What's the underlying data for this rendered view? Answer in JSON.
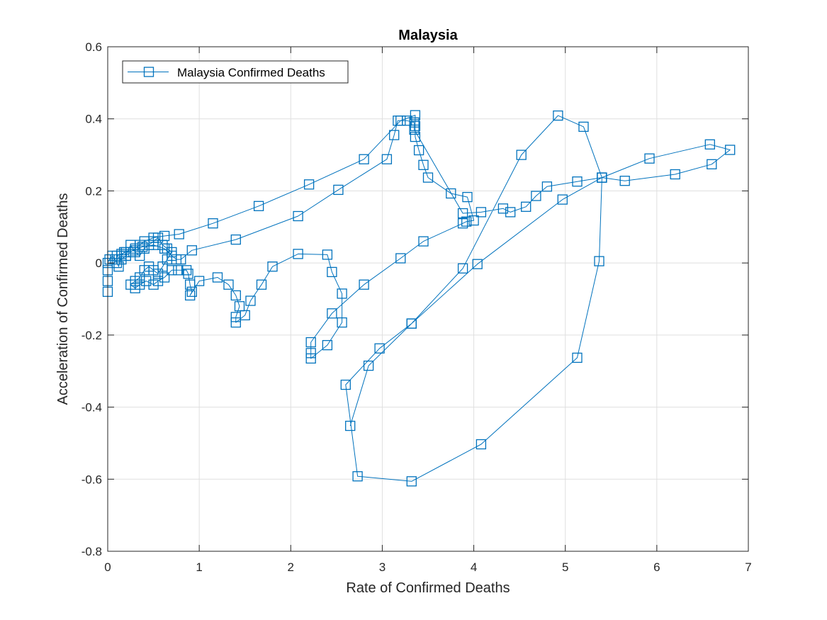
{
  "chart_data": {
    "type": "line",
    "title": "Malaysia",
    "xlabel": "Rate of Confirmed Deaths",
    "ylabel": "Acceleration of Confirmed Deaths",
    "xlim": [
      0,
      7
    ],
    "ylim": [
      -0.8,
      0.6
    ],
    "xticks": [
      "0",
      "1",
      "2",
      "3",
      "4",
      "5",
      "6",
      "7"
    ],
    "yticks": [
      "-0.8",
      "-0.6",
      "-0.4",
      "-0.2",
      "0",
      "0.2",
      "0.4",
      "0.6"
    ],
    "grid": true,
    "legend_position": "top-left",
    "marker": "square",
    "color": "#0072BD",
    "series": [
      {
        "name": "Malaysia Confirmed Deaths",
        "points": [
          [
            0,
            -0.08
          ],
          [
            0,
            -0.05
          ],
          [
            0,
            -0.02
          ],
          [
            0,
            0
          ],
          [
            0.02,
            0.01
          ],
          [
            0.05,
            0.02
          ],
          [
            0.08,
            0.01
          ],
          [
            0.1,
            0
          ],
          [
            0.12,
            -0.01
          ],
          [
            0.15,
            0.02
          ],
          [
            0.18,
            0.03
          ],
          [
            0.2,
            0.02
          ],
          [
            0.25,
            0.05
          ],
          [
            0.3,
            0.03
          ],
          [
            0.35,
            0.02
          ],
          [
            0.4,
            0.04
          ],
          [
            0.45,
            0.05
          ],
          [
            0.5,
            0.06
          ],
          [
            0.55,
            0.07
          ],
          [
            0.6,
            0.05
          ],
          [
            0.65,
            0.04
          ],
          [
            0.7,
            0.03
          ],
          [
            0.65,
            0.01
          ],
          [
            0.6,
            -0.01
          ],
          [
            0.55,
            -0.03
          ],
          [
            0.5,
            -0.02
          ],
          [
            0.45,
            -0.01
          ],
          [
            0.4,
            -0.02
          ],
          [
            0.35,
            -0.04
          ],
          [
            0.3,
            -0.05
          ],
          [
            0.25,
            -0.06
          ],
          [
            0.3,
            -0.07
          ],
          [
            0.35,
            -0.06
          ],
          [
            0.42,
            -0.05
          ],
          [
            0.5,
            -0.06
          ],
          [
            0.55,
            -0.05
          ],
          [
            0.62,
            -0.04
          ],
          [
            0.7,
            -0.02
          ],
          [
            0.77,
            -0.02
          ],
          [
            0.86,
            -0.02
          ],
          [
            0.88,
            -0.03
          ],
          [
            0.9,
            -0.06
          ],
          [
            0.92,
            -0.08
          ],
          [
            0.9,
            -0.09
          ],
          [
            1.0,
            -0.05
          ],
          [
            1.2,
            -0.04
          ],
          [
            1.32,
            -0.06
          ],
          [
            1.4,
            -0.09
          ],
          [
            1.44,
            -0.12
          ],
          [
            1.4,
            -0.15
          ],
          [
            1.4,
            -0.165
          ],
          [
            1.5,
            -0.145
          ],
          [
            1.56,
            -0.105
          ],
          [
            1.68,
            -0.06
          ],
          [
            1.8,
            -0.01
          ],
          [
            2.08,
            0.025
          ],
          [
            2.4,
            0.023
          ],
          [
            2.45,
            -0.025
          ],
          [
            2.56,
            -0.085
          ],
          [
            2.56,
            -0.165
          ],
          [
            2.4,
            -0.228
          ],
          [
            2.22,
            -0.265
          ],
          [
            2.22,
            -0.25
          ],
          [
            2.22,
            -0.22
          ],
          [
            2.45,
            -0.14
          ],
          [
            2.8,
            -0.06
          ],
          [
            3.2,
            0.013
          ],
          [
            3.45,
            0.06
          ],
          [
            3.88,
            0.11
          ],
          [
            3.92,
            0.115
          ],
          [
            4.0,
            0.118
          ],
          [
            3.93,
            0.183
          ],
          [
            3.75,
            0.193
          ],
          [
            3.5,
            0.237
          ],
          [
            3.45,
            0.272
          ],
          [
            3.4,
            0.313
          ],
          [
            3.36,
            0.35
          ],
          [
            3.36,
            0.38
          ],
          [
            3.36,
            0.41
          ],
          [
            3.2,
            0.395
          ],
          [
            2.8,
            0.288
          ],
          [
            2.2,
            0.218
          ],
          [
            1.65,
            0.158
          ],
          [
            1.15,
            0.11
          ],
          [
            0.78,
            0.08
          ],
          [
            0.62,
            0.075
          ],
          [
            0.5,
            0.07
          ],
          [
            0.4,
            0.06
          ],
          [
            0.35,
            0.05
          ],
          [
            0.3,
            0.04
          ],
          [
            0.25,
            0.03
          ],
          [
            0.2,
            0.02
          ],
          [
            0.15,
            0.01
          ],
          [
            0.1,
            0.02
          ],
          [
            0.15,
            0.025
          ],
          [
            0.2,
            0.03
          ],
          [
            0.3,
            0.035
          ],
          [
            0.38,
            0.045
          ],
          [
            0.5,
            0.05
          ],
          [
            0.62,
            0.04
          ],
          [
            0.7,
            0.02
          ],
          [
            0.75,
            0.01
          ],
          [
            0.8,
            0.01
          ],
          [
            0.92,
            0.035
          ],
          [
            1.4,
            0.065
          ],
          [
            2.08,
            0.13
          ],
          [
            2.52,
            0.203
          ],
          [
            3.05,
            0.288
          ],
          [
            3.13,
            0.355
          ],
          [
            3.17,
            0.395
          ],
          [
            3.27,
            0.395
          ],
          [
            3.35,
            0.39
          ],
          [
            3.35,
            0.37
          ],
          [
            3.88,
            0.138
          ],
          [
            4.08,
            0.141
          ],
          [
            4.32,
            0.151
          ],
          [
            4.4,
            0.141
          ],
          [
            4.57,
            0.156
          ],
          [
            4.68,
            0.186
          ],
          [
            4.8,
            0.212
          ],
          [
            5.13,
            0.226
          ],
          [
            5.4,
            0.237
          ],
          [
            5.65,
            0.228
          ],
          [
            6.2,
            0.246
          ],
          [
            6.6,
            0.274
          ],
          [
            6.8,
            0.314
          ],
          [
            6.58,
            0.329
          ],
          [
            5.92,
            0.29
          ],
          [
            5.4,
            0.237
          ],
          [
            4.97,
            0.176
          ],
          [
            4.04,
            -0.003
          ],
          [
            3.32,
            -0.168
          ],
          [
            2.97,
            -0.237
          ],
          [
            2.6,
            -0.338
          ],
          [
            2.73,
            -0.592
          ],
          [
            3.32,
            -0.606
          ],
          [
            4.08,
            -0.503
          ],
          [
            5.13,
            -0.263
          ],
          [
            5.37,
            0.005
          ],
          [
            5.4,
            0.237
          ],
          [
            5.2,
            0.378
          ],
          [
            4.92,
            0.409
          ],
          [
            4.52,
            0.3
          ],
          [
            3.88,
            -0.015
          ],
          [
            3.32,
            -0.168
          ],
          [
            2.85,
            -0.285
          ],
          [
            2.65,
            -0.452
          ]
        ]
      }
    ]
  }
}
